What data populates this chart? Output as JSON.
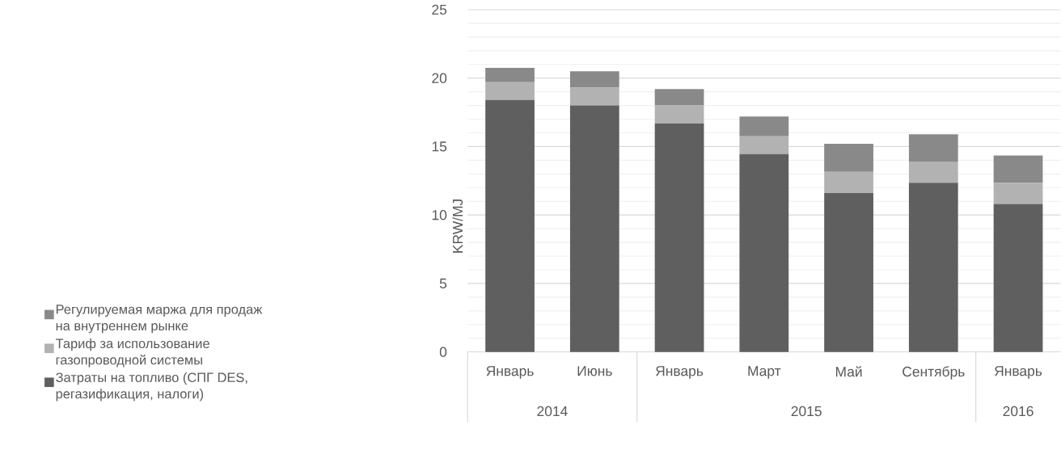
{
  "chart_data": {
    "type": "bar",
    "stacked": true,
    "ylabel": "KRW/MJ",
    "categories": [
      "Январь",
      "Июнь",
      "Январь",
      "Март",
      "Май",
      "Сентябрь",
      "Январь"
    ],
    "annotations": [
      "2014",
      "2015",
      "2016"
    ],
    "series": [
      {
        "name": "Затраты на топливо (СПГ DES, регазификация, налоги)",
        "color": "#5f5f5f",
        "values": [
          18.4,
          18.0,
          16.7,
          14.45,
          11.6,
          12.35,
          10.8
        ]
      },
      {
        "name": "Тариф за использование газопроводной системы",
        "color": "#b2b2b2",
        "values": [
          1.3,
          1.3,
          1.3,
          1.3,
          1.55,
          1.55,
          1.55
        ]
      },
      {
        "name": "Регулируемая маржа для продаж на внутреннем рынке",
        "color": "#898989",
        "values": [
          1.05,
          1.2,
          1.2,
          1.45,
          2.05,
          2.0,
          2.0
        ]
      }
    ],
    "ylim": [
      0,
      25
    ],
    "yticks": [
      0,
      5,
      10,
      15,
      20,
      25
    ],
    "grid": "y",
    "legend": "left"
  }
}
